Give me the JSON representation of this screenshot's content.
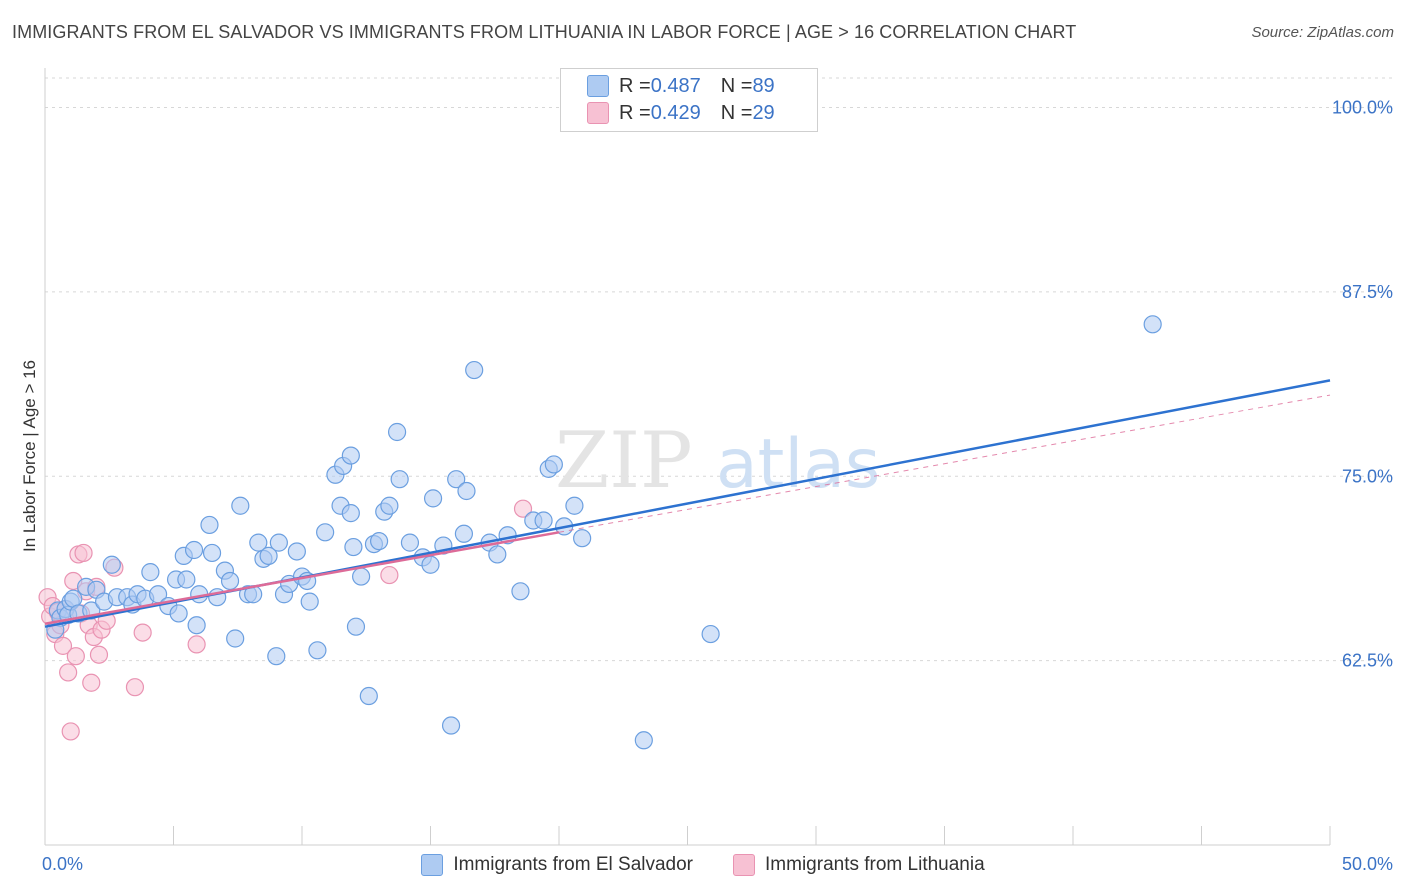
{
  "title": "IMMIGRANTS FROM EL SALVADOR VS IMMIGRANTS FROM LITHUANIA IN LABOR FORCE | AGE > 16 CORRELATION CHART",
  "source": "Source: ZipAtlas.com",
  "watermark": {
    "zip": "ZIP",
    "atlas": "atlas"
  },
  "colors": {
    "blue_fill": "#aecbf2",
    "blue_stroke": "#6b9fe0",
    "blue_line": "#2d72d0",
    "pink_fill": "#f7c1d3",
    "pink_stroke": "#e993b2",
    "pink_line": "#dd6b98",
    "axis_label": "#3b73c6",
    "grid": "#d7d7d7"
  },
  "legend": {
    "rows": [
      {
        "r_label": "R = ",
        "r_value": "0.487",
        "n_label": "N = ",
        "n_value": "89"
      },
      {
        "r_label": "R = ",
        "r_value": "0.429",
        "n_label": "N = ",
        "n_value": "29"
      }
    ]
  },
  "bottom_legend": [
    "Immigrants from El Salvador",
    "Immigrants from Lithuania"
  ],
  "chart_data": {
    "type": "scatter",
    "title": "IMMIGRANTS FROM EL SALVADOR VS IMMIGRANTS FROM LITHUANIA IN LABOR FORCE | AGE > 16 CORRELATION CHART",
    "xlabel": "",
    "ylabel": "In Labor Force | Age > 16",
    "xlim": [
      0,
      50
    ],
    "ylim": [
      50,
      102
    ],
    "x_tick_labels": [
      {
        "value": 0,
        "label": "0.0%"
      },
      {
        "value": 50,
        "label": "50.0%"
      }
    ],
    "y_tick_labels": [
      {
        "value": 62.5,
        "label": "62.5%"
      },
      {
        "value": 75.0,
        "label": "75.0%"
      },
      {
        "value": 87.5,
        "label": "87.5%"
      },
      {
        "value": 100.0,
        "label": "100.0%"
      }
    ],
    "series": [
      {
        "name": "Immigrants from El Salvador",
        "color": "blue",
        "R": 0.487,
        "N": 89,
        "trend": {
          "x": [
            0,
            50
          ],
          "y": [
            64.8,
            81.5
          ]
        },
        "points": [
          [
            0.5,
            65.9
          ],
          [
            0.6,
            65.4
          ],
          [
            0.8,
            66.0
          ],
          [
            0.9,
            65.6
          ],
          [
            1.0,
            66.5
          ],
          [
            1.1,
            66.7
          ],
          [
            1.3,
            65.7
          ],
          [
            1.6,
            67.5
          ],
          [
            1.8,
            65.9
          ],
          [
            2.0,
            67.3
          ],
          [
            2.3,
            66.5
          ],
          [
            2.6,
            69.0
          ],
          [
            2.8,
            66.8
          ],
          [
            3.2,
            66.8
          ],
          [
            3.4,
            66.3
          ],
          [
            3.6,
            67.0
          ],
          [
            3.9,
            66.7
          ],
          [
            4.1,
            68.5
          ],
          [
            4.4,
            67.0
          ],
          [
            4.8,
            66.2
          ],
          [
            5.1,
            68.0
          ],
          [
            5.2,
            65.7
          ],
          [
            5.4,
            69.6
          ],
          [
            5.5,
            68.0
          ],
          [
            5.8,
            70.0
          ],
          [
            5.9,
            64.9
          ],
          [
            6.0,
            67.0
          ],
          [
            6.4,
            71.7
          ],
          [
            6.5,
            69.8
          ],
          [
            6.7,
            66.8
          ],
          [
            7.0,
            68.6
          ],
          [
            7.2,
            67.9
          ],
          [
            7.4,
            64.0
          ],
          [
            7.6,
            73.0
          ],
          [
            7.9,
            67.0
          ],
          [
            8.1,
            67.0
          ],
          [
            8.3,
            70.5
          ],
          [
            8.5,
            69.4
          ],
          [
            8.7,
            69.6
          ],
          [
            9.0,
            62.8
          ],
          [
            9.1,
            70.5
          ],
          [
            9.3,
            67.0
          ],
          [
            9.5,
            67.7
          ],
          [
            9.8,
            69.9
          ],
          [
            10.0,
            68.2
          ],
          [
            10.2,
            67.9
          ],
          [
            10.3,
            66.5
          ],
          [
            10.6,
            63.2
          ],
          [
            10.9,
            71.2
          ],
          [
            11.3,
            75.1
          ],
          [
            11.5,
            73.0
          ],
          [
            11.6,
            75.7
          ],
          [
            11.9,
            76.4
          ],
          [
            11.9,
            72.5
          ],
          [
            12.0,
            70.2
          ],
          [
            12.1,
            64.8
          ],
          [
            12.3,
            68.2
          ],
          [
            12.6,
            60.1
          ],
          [
            12.8,
            70.4
          ],
          [
            13.0,
            70.6
          ],
          [
            13.2,
            72.6
          ],
          [
            13.4,
            73.0
          ],
          [
            13.7,
            78.0
          ],
          [
            13.8,
            74.8
          ],
          [
            14.2,
            70.5
          ],
          [
            14.7,
            69.5
          ],
          [
            15.0,
            69.0
          ],
          [
            15.1,
            73.5
          ],
          [
            15.5,
            70.3
          ],
          [
            15.8,
            58.1
          ],
          [
            16.0,
            74.8
          ],
          [
            16.3,
            71.1
          ],
          [
            16.4,
            74.0
          ],
          [
            16.7,
            82.2
          ],
          [
            17.3,
            70.5
          ],
          [
            17.6,
            69.7
          ],
          [
            18.0,
            71.0
          ],
          [
            18.5,
            67.2
          ],
          [
            19.0,
            72.0
          ],
          [
            19.4,
            72.0
          ],
          [
            19.6,
            75.5
          ],
          [
            19.8,
            75.8
          ],
          [
            20.2,
            71.6
          ],
          [
            20.6,
            73.0
          ],
          [
            20.9,
            70.8
          ],
          [
            23.3,
            57.1
          ],
          [
            25.9,
            64.3
          ],
          [
            43.1,
            85.3
          ],
          [
            0.4,
            64.6
          ]
        ]
      },
      {
        "name": "Immigrants from Lithuania",
        "color": "pink",
        "R": 0.429,
        "N": 29,
        "trend": {
          "x": [
            0,
            20
          ],
          "y": [
            65.0,
            71.2
          ]
        },
        "points": [
          [
            0.1,
            66.8
          ],
          [
            0.2,
            65.5
          ],
          [
            0.3,
            66.2
          ],
          [
            0.4,
            64.3
          ],
          [
            0.5,
            65.8
          ],
          [
            0.6,
            64.9
          ],
          [
            0.7,
            63.5
          ],
          [
            0.8,
            66.0
          ],
          [
            0.9,
            61.7
          ],
          [
            1.0,
            57.7
          ],
          [
            1.1,
            67.9
          ],
          [
            1.2,
            62.8
          ],
          [
            1.3,
            69.7
          ],
          [
            1.4,
            65.7
          ],
          [
            1.5,
            69.8
          ],
          [
            1.6,
            67.2
          ],
          [
            1.7,
            64.9
          ],
          [
            1.8,
            61.0
          ],
          [
            1.9,
            64.1
          ],
          [
            2.0,
            67.5
          ],
          [
            2.1,
            62.9
          ],
          [
            2.2,
            64.6
          ],
          [
            2.4,
            65.2
          ],
          [
            2.7,
            68.8
          ],
          [
            3.5,
            60.7
          ],
          [
            3.8,
            64.4
          ],
          [
            5.9,
            63.6
          ],
          [
            13.4,
            68.3
          ],
          [
            18.6,
            72.8
          ]
        ]
      }
    ]
  }
}
